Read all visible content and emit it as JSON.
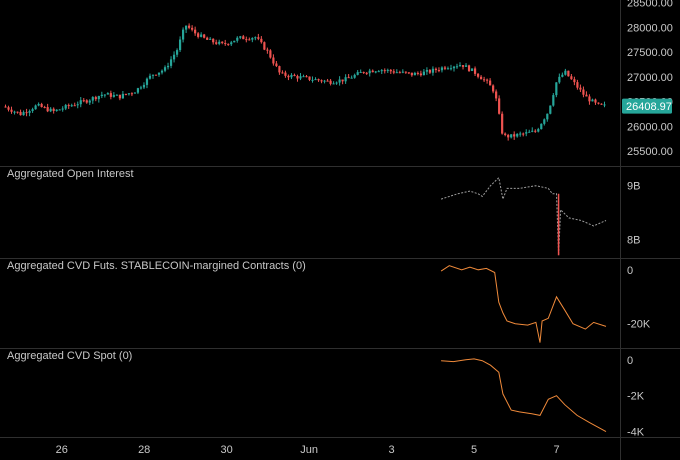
{
  "colors": {
    "background": "#000000",
    "up": "#26a69a",
    "down": "#ef5350",
    "orange": "#f08a3a",
    "oi_line": "#9e9e9e",
    "price_badge": "#26a69a",
    "text": "#c8c8c8",
    "separator": "#2f2f2f"
  },
  "x_axis": {
    "labels": [
      "26",
      "28",
      "30",
      "Jun",
      "3",
      "5",
      "7"
    ],
    "label_days": [
      26,
      28,
      30,
      32,
      34,
      36,
      38
    ]
  },
  "chart_data": [
    {
      "type": "candlestick",
      "title": "",
      "ylim": [
        25200,
        28550
      ],
      "yticks": [
        25500,
        26000,
        26500,
        27000,
        27500,
        28000,
        28500
      ],
      "ytick_labels": [
        "25500.00",
        "26000.00",
        "26500.00",
        "27000.00",
        "27500.00",
        "28000.00",
        "28500.00"
      ],
      "last_price": 26408.97,
      "last_price_label": "26408.97",
      "day_start": 24.6,
      "day_end": 39.2,
      "anchors": [
        [
          24.6,
          26400
        ],
        [
          25.0,
          26250
        ],
        [
          25.4,
          26420
        ],
        [
          25.8,
          26300
        ],
        [
          26.2,
          26420
        ],
        [
          26.6,
          26520
        ],
        [
          27.0,
          26650
        ],
        [
          27.4,
          26600
        ],
        [
          27.8,
          26720
        ],
        [
          28.2,
          27050
        ],
        [
          28.5,
          27150
        ],
        [
          28.8,
          27550
        ],
        [
          29.0,
          28050
        ],
        [
          29.2,
          27900
        ],
        [
          29.5,
          27750
        ],
        [
          29.9,
          27650
        ],
        [
          30.3,
          27780
        ],
        [
          30.7,
          27800
        ],
        [
          31.0,
          27500
        ],
        [
          31.3,
          27050
        ],
        [
          31.7,
          27000
        ],
        [
          32.1,
          26950
        ],
        [
          32.5,
          26900
        ],
        [
          32.9,
          26950
        ],
        [
          33.3,
          27100
        ],
        [
          33.7,
          27150
        ],
        [
          34.1,
          27100
        ],
        [
          34.5,
          27050
        ],
        [
          34.9,
          27100
        ],
        [
          35.3,
          27200
        ],
        [
          35.7,
          27250
        ],
        [
          36.0,
          27100
        ],
        [
          36.3,
          26900
        ],
        [
          36.5,
          26700
        ],
        [
          36.7,
          25800
        ],
        [
          36.9,
          25800
        ],
        [
          37.2,
          25850
        ],
        [
          37.5,
          25900
        ],
        [
          37.8,
          26300
        ],
        [
          38.0,
          26900
        ],
        [
          38.2,
          27100
        ],
        [
          38.4,
          26900
        ],
        [
          38.7,
          26600
        ],
        [
          39.0,
          26420
        ],
        [
          39.2,
          26409
        ]
      ]
    },
    {
      "type": "line",
      "title": "Aggregated Open Interest",
      "ylim": [
        7.65,
        9.35
      ],
      "yticks": [
        8,
        9
      ],
      "ytick_labels": [
        "8B",
        "9B"
      ],
      "x": [
        35.2,
        35.6,
        35.9,
        36.1,
        36.2,
        36.4,
        36.6,
        36.7,
        36.8,
        37.1,
        37.5,
        37.8,
        37.9,
        38.0,
        38.05,
        38.1,
        38.3,
        38.6,
        38.9,
        39.2
      ],
      "values": [
        8.75,
        8.85,
        8.9,
        8.85,
        8.8,
        9.0,
        9.15,
        8.75,
        8.95,
        8.95,
        9.0,
        8.95,
        8.85,
        8.85,
        7.7,
        8.55,
        8.4,
        8.35,
        8.25,
        8.35
      ]
    },
    {
      "type": "line",
      "title": "Aggregated CVD Futs. STABLECOIN-margined Contracts (0)",
      "ylim": [
        -29000,
        4000
      ],
      "yticks": [
        0,
        -20000
      ],
      "ytick_labels": [
        "0",
        "-20K"
      ],
      "x": [
        35.2,
        35.4,
        35.7,
        35.9,
        36.1,
        36.3,
        36.5,
        36.6,
        36.7,
        36.8,
        37.0,
        37.3,
        37.5,
        37.6,
        37.65,
        37.8,
        38.0,
        38.2,
        38.4,
        38.7,
        38.9,
        39.2
      ],
      "values": [
        -500,
        1500,
        0,
        1000,
        0,
        500,
        -1000,
        -12000,
        -16000,
        -19000,
        -20000,
        -20500,
        -19500,
        -27000,
        -19000,
        -18000,
        -10000,
        -15000,
        -20000,
        -22000,
        -19500,
        -21000
      ]
    },
    {
      "type": "line",
      "title": "Aggregated CVD Spot (0)",
      "ylim": [
        -4300,
        600
      ],
      "yticks": [
        0,
        -2000,
        -4000
      ],
      "ytick_labels": [
        "0",
        "-2K",
        "-4K"
      ],
      "x": [
        35.2,
        35.5,
        35.8,
        36.0,
        36.2,
        36.4,
        36.6,
        36.7,
        36.9,
        37.1,
        37.4,
        37.6,
        37.8,
        38.0,
        38.2,
        38.5,
        38.8,
        39.2
      ],
      "values": [
        -50,
        -100,
        0,
        50,
        -50,
        -300,
        -700,
        -1900,
        -2800,
        -2900,
        -3000,
        -3100,
        -2200,
        -2000,
        -2500,
        -3100,
        -3500,
        -4000
      ]
    }
  ]
}
